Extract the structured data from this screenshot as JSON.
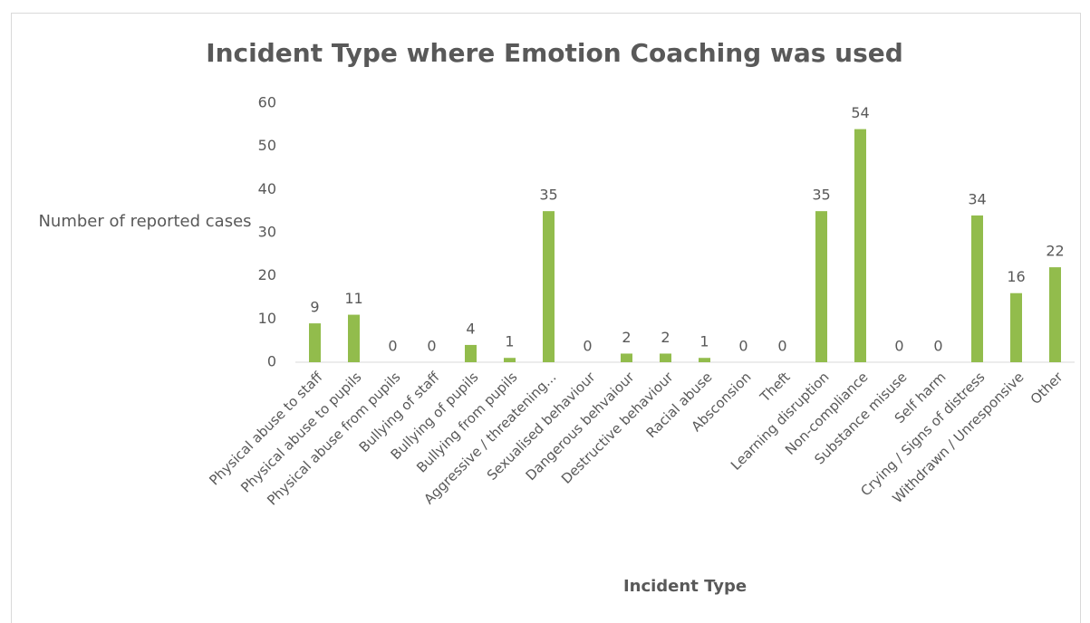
{
  "chart_data": {
    "type": "bar",
    "title": "Incident Type where Emotion Coaching was used",
    "x_label": "Incident Type",
    "y_label": "Number of reported cases",
    "categories": [
      "Physical abuse to staff",
      "Physical abuse to pupils",
      "Physical abuse from pupils",
      "Bullying of staff",
      "Bullying of pupils",
      "Bullying from pupils",
      "Aggressive / threatening...",
      "Sexualised behaviour",
      "Dangerous behvaiour",
      "Destructive behaviour",
      "Racial abuse",
      "Absconsion",
      "Theft",
      "Learning disruption",
      "Non-compliance",
      "Substance misuse",
      "Self harm",
      "Crying / Signs of distress",
      "Withdrawn / Unresponsive",
      "Other"
    ],
    "values": [
      9,
      11,
      0,
      0,
      4,
      1,
      35,
      0,
      2,
      2,
      1,
      0,
      0,
      35,
      54,
      0,
      0,
      34,
      16,
      22
    ],
    "color": "#92bc4c",
    "ylim": [
      0,
      60
    ],
    "yticks": [
      0,
      10,
      20,
      30,
      40,
      50,
      60
    ],
    "grid": false
  }
}
